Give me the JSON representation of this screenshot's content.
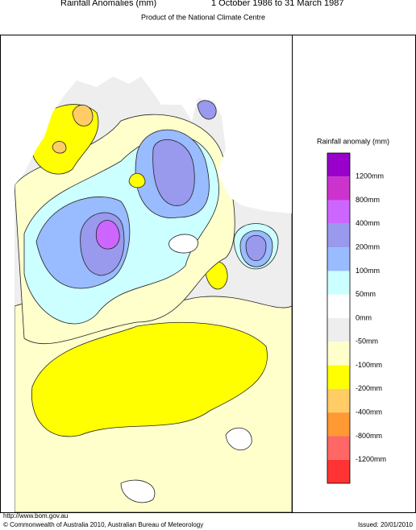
{
  "header": {
    "title": "Rainfall Anomalies (mm)",
    "period": "1 October 1986 to 31 March 1987",
    "subtitle": "Product of the National Climate Centre"
  },
  "legend": {
    "title": "Rainfall anomaly (mm)",
    "colors": [
      "#9900cc",
      "#cc33cc",
      "#cc66ff",
      "#9999ee",
      "#99bbff",
      "#ccffff",
      "#ffffff",
      "#eeeeee",
      "#ffffcc",
      "#ffff00",
      "#ffcc66",
      "#ff9933",
      "#ff6666",
      "#ff3333"
    ],
    "labels": [
      "1200mm",
      "800mm",
      "400mm",
      "200mm",
      "100mm",
      "50mm",
      "0mm",
      "-50mm",
      "-100mm",
      "-200mm",
      "-400mm",
      "-800mm",
      "-1200mm"
    ]
  },
  "footer": {
    "url": "http://www.bom.gov.au",
    "copyright": "© Commonwealth of Australia 2010, Australian Bureau of Meteorology",
    "issued": "Issued: 20/01/2010"
  }
}
